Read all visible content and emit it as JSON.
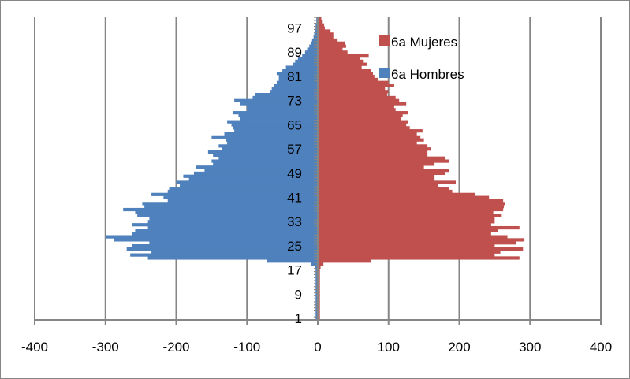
{
  "chart_data": {
    "type": "bar",
    "orientation": "horizontal",
    "x_ticks": [
      -400,
      -300,
      -200,
      -100,
      0,
      100,
      200,
      300,
      400
    ],
    "x_tick_labels": [
      "-400",
      "-300",
      "-200",
      "-100",
      "0",
      "100",
      "200",
      "300",
      "400"
    ],
    "xlim": [
      -400,
      400
    ],
    "y_ticks": [
      1,
      9,
      17,
      25,
      33,
      41,
      49,
      57,
      65,
      73,
      81,
      89,
      97
    ],
    "y_tick_labels": [
      "1",
      "9",
      "17",
      "25",
      "33",
      "41",
      "49",
      "57",
      "65",
      "73",
      "81",
      "89",
      "97"
    ],
    "ages": [
      1,
      2,
      3,
      4,
      5,
      6,
      7,
      8,
      9,
      10,
      11,
      12,
      13,
      14,
      15,
      16,
      17,
      18,
      19,
      20,
      21,
      22,
      23,
      24,
      25,
      26,
      27,
      28,
      29,
      30,
      31,
      32,
      33,
      34,
      35,
      36,
      37,
      38,
      39,
      40,
      41,
      42,
      43,
      44,
      45,
      46,
      47,
      48,
      49,
      50,
      51,
      52,
      53,
      54,
      55,
      56,
      57,
      58,
      59,
      60,
      61,
      62,
      63,
      64,
      65,
      66,
      67,
      68,
      69,
      70,
      71,
      72,
      73,
      74,
      75,
      76,
      77,
      78,
      79,
      80,
      81,
      82,
      83,
      84,
      85,
      86,
      87,
      88,
      89,
      90,
      91,
      92,
      93,
      94,
      95,
      96,
      97,
      98,
      99,
      100
    ],
    "grid": true,
    "legend_position": "top-right",
    "series": [
      {
        "name": "6a Mujeres",
        "color": "#c0504d",
        "values": [
          3,
          3,
          3,
          3,
          3,
          3,
          3,
          3,
          3,
          3,
          3,
          3,
          3,
          3,
          3,
          3,
          3,
          4,
          8,
          75,
          285,
          250,
          258,
          290,
          250,
          280,
          292,
          268,
          245,
          255,
          285,
          245,
          250,
          250,
          260,
          248,
          262,
          263,
          265,
          262,
          242,
          222,
          190,
          185,
          170,
          195,
          165,
          165,
          180,
          185,
          150,
          165,
          185,
          180,
          155,
          155,
          160,
          155,
          140,
          150,
          145,
          140,
          148,
          130,
          125,
          128,
          118,
          120,
          128,
          110,
          108,
          125,
          115,
          110,
          98,
          100,
          95,
          108,
          100,
          85,
          80,
          78,
          75,
          62,
          70,
          65,
          60,
          72,
          42,
          35,
          40,
          38,
          28,
          22,
          22,
          18,
          10,
          9,
          7,
          5
        ]
      },
      {
        "name": "6a Hombres",
        "color": "#4f81bd",
        "values": [
          -3,
          -3,
          -3,
          -3,
          -3,
          -3,
          -3,
          -3,
          -3,
          -3,
          -3,
          -3,
          -3,
          -3,
          -3,
          -3,
          -3,
          -4,
          -10,
          -72,
          -240,
          -265,
          -235,
          -270,
          -262,
          -238,
          -288,
          -300,
          -262,
          -258,
          -240,
          -262,
          -240,
          -238,
          -255,
          -258,
          -275,
          -245,
          -248,
          -212,
          -218,
          -235,
          -212,
          -210,
          -195,
          -200,
          -182,
          -190,
          -175,
          -160,
          -172,
          -148,
          -150,
          -140,
          -148,
          -155,
          -135,
          -140,
          -128,
          -130,
          -150,
          -132,
          -118,
          -120,
          -122,
          -128,
          -110,
          -112,
          -120,
          -100,
          -100,
          -110,
          -118,
          -92,
          -88,
          -68,
          -65,
          -62,
          -58,
          -55,
          -55,
          -58,
          -50,
          -45,
          -35,
          -32,
          -28,
          -22,
          -18,
          -15,
          -12,
          -10,
          -8,
          -6,
          -5,
          -4,
          -3,
          -3,
          -2,
          -2
        ]
      }
    ]
  }
}
